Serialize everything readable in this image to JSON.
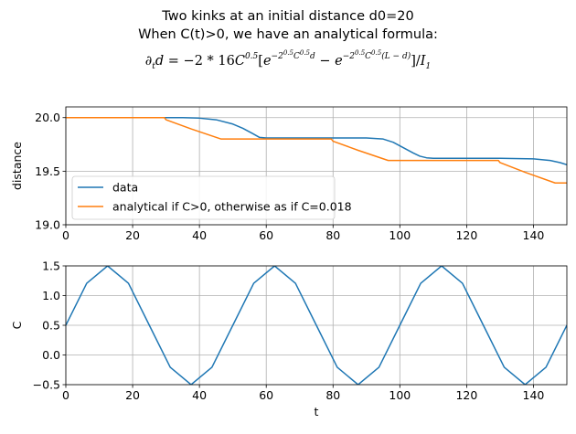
{
  "figure": {
    "title_lines": [
      "Two kinks at an initial distance d0=20",
      "When C(t)>0, we have an analytical formula:"
    ],
    "formula": "∂_t d = −2*16C^0.5[e^(−2^0.5 C^0.5 d) − e^(−2^0.5 C^0.5 (L−d))]/I_1",
    "formula_parts": {
      "lhs": "∂",
      "lhs_sub": "t",
      "d": "d",
      "eq": " = −2 * 16",
      "C": "C",
      "half": "0.5",
      "open": "[",
      "e": "e",
      "minus": " − ",
      "exp1": "−2",
      "exp1b": "C",
      "exp1c": "d",
      "exp2c": "(L − d)",
      "close": "]/",
      "I": "I",
      "one": "1"
    }
  },
  "chart_data": [
    {
      "type": "line",
      "xlabel": "",
      "ylabel": "distance",
      "xlim": [
        0,
        150
      ],
      "ylim": [
        19.0,
        20.1
      ],
      "xticks": [
        0,
        20,
        40,
        60,
        80,
        100,
        120,
        140
      ],
      "yticks": [
        19.0,
        19.5,
        20.0
      ],
      "xtick_labels": [
        "0",
        "20",
        "40",
        "60",
        "80",
        "100",
        "120",
        "140"
      ],
      "ytick_labels": [
        "19.0",
        "19.5",
        "20.0"
      ],
      "grid": true,
      "legend_placement": "lower-left",
      "series": [
        {
          "name": "data",
          "color": "#1f77b4",
          "x": [
            0,
            20,
            35,
            40,
            45,
            50,
            53,
            56,
            58,
            60,
            70,
            80,
            90,
            95,
            98,
            101,
            104,
            106,
            108,
            110,
            120,
            130,
            140,
            145,
            148,
            150
          ],
          "y": [
            20.0,
            20.0,
            20.0,
            19.995,
            19.98,
            19.94,
            19.9,
            19.85,
            19.815,
            19.81,
            19.81,
            19.81,
            19.81,
            19.8,
            19.77,
            19.72,
            19.67,
            19.64,
            19.625,
            19.62,
            19.62,
            19.62,
            19.615,
            19.6,
            19.58,
            19.56
          ]
        },
        {
          "name": "analytical if C>0, otherwise as if C=0.018",
          "color": "#ff7f0e",
          "x": [
            0,
            29.5,
            30,
            37.5,
            46.5,
            79.5,
            80,
            87.5,
            96.5,
            129.5,
            130,
            137.5,
            146.5,
            150
          ],
          "y": [
            20.0,
            20.0,
            19.98,
            19.895,
            19.8,
            19.8,
            19.78,
            19.695,
            19.6,
            19.6,
            19.58,
            19.49,
            19.39,
            19.39
          ]
        }
      ]
    },
    {
      "type": "line",
      "xlabel": "t",
      "ylabel": "C",
      "xlim": [
        0,
        150
      ],
      "ylim": [
        -0.5,
        1.5
      ],
      "xticks": [
        0,
        20,
        40,
        60,
        80,
        100,
        120,
        140
      ],
      "yticks": [
        -0.5,
        0.0,
        0.5,
        1.0,
        1.5
      ],
      "xtick_labels": [
        "0",
        "20",
        "40",
        "60",
        "80",
        "100",
        "120",
        "140"
      ],
      "ytick_labels": [
        "−0.5",
        "0.0",
        "0.5",
        "1.0",
        "1.5"
      ],
      "grid": true,
      "series": [
        {
          "name": "",
          "color": "#1f77b4",
          "x": [
            0,
            6.25,
            12.5,
            18.75,
            25,
            31.25,
            37.5,
            43.75,
            50,
            56.25,
            62.5,
            68.75,
            75,
            81.25,
            87.5,
            93.75,
            100,
            106.25,
            112.5,
            118.75,
            125,
            131.25,
            137.5,
            143.75,
            150
          ],
          "y": [
            0.5,
            1.207,
            1.5,
            1.207,
            0.5,
            -0.207,
            -0.5,
            -0.207,
            0.5,
            1.207,
            1.5,
            1.207,
            0.5,
            -0.207,
            -0.5,
            -0.207,
            0.5,
            1.207,
            1.5,
            1.207,
            0.5,
            -0.207,
            -0.5,
            -0.207,
            0.5
          ]
        }
      ]
    }
  ]
}
